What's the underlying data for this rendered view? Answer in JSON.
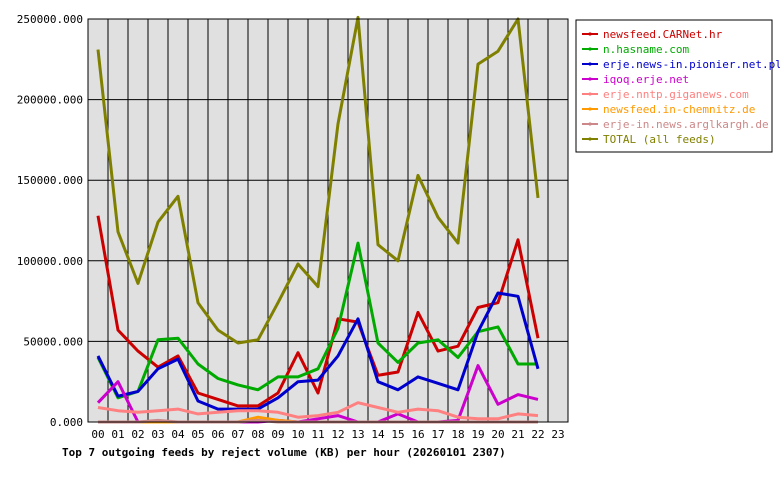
{
  "chart_data": {
    "type": "line",
    "title": "Top 7 outgoing feeds by reject volume (KB) per hour (20260101 2307)",
    "x": [
      "00",
      "01",
      "02",
      "03",
      "04",
      "05",
      "06",
      "07",
      "08",
      "09",
      "10",
      "11",
      "12",
      "13",
      "14",
      "15",
      "16",
      "17",
      "18",
      "19",
      "20",
      "21",
      "22",
      "23"
    ],
    "ylim": [
      0,
      250000
    ],
    "yticks": [
      "0.000",
      "50000.000",
      "100000.000",
      "150000.000",
      "200000.000",
      "250000.000"
    ],
    "yticks_values": [
      0,
      50000,
      100000,
      150000,
      200000,
      250000
    ],
    "grid": true,
    "legend_position": "top-right",
    "series": [
      {
        "name": "newsfeed.CARNet.hr",
        "color": "#cc0000",
        "values": [
          128000,
          57000,
          44000,
          34000,
          41000,
          18000,
          14000,
          10000,
          10000,
          18000,
          43000,
          18000,
          64000,
          62000,
          29000,
          31000,
          68000,
          44000,
          47000,
          71000,
          74000,
          113000,
          52000,
          null
        ]
      },
      {
        "name": "n.hasname.com",
        "color": "#00aa00",
        "values": [
          40000,
          15000,
          19000,
          51000,
          52000,
          36000,
          27000,
          23000,
          20000,
          28000,
          28000,
          33000,
          58000,
          111000,
          49000,
          37000,
          49000,
          51000,
          40000,
          56000,
          59000,
          36000,
          36000,
          null
        ]
      },
      {
        "name": "erje.news-in.pionier.net.pl",
        "color": "#0000cc",
        "values": [
          41000,
          16000,
          19000,
          33000,
          39000,
          13000,
          8000,
          8000,
          8000,
          15000,
          25000,
          26000,
          41000,
          64000,
          25000,
          20000,
          28000,
          24000,
          20000,
          56000,
          80000,
          78000,
          33000,
          null
        ]
      },
      {
        "name": "iqoq.erje.net",
        "color": "#cc00cc",
        "values": [
          12000,
          25000,
          0,
          0,
          0,
          0,
          0,
          0,
          0,
          1000,
          0,
          2000,
          4000,
          0,
          0,
          5000,
          0,
          0,
          1000,
          35000,
          11000,
          17000,
          14000,
          null
        ]
      },
      {
        "name": "erje.nntp.giganews.com",
        "color": "#ff8080",
        "values": [
          9000,
          7000,
          6000,
          7000,
          8000,
          5000,
          6000,
          7000,
          7000,
          6000,
          3000,
          4000,
          6000,
          12000,
          9000,
          6000,
          8000,
          7000,
          3000,
          2000,
          2000,
          5000,
          4000,
          null
        ]
      },
      {
        "name": "newsfeed.in-chemnitz.de",
        "color": "#ff9900",
        "values": [
          0,
          0,
          0,
          0,
          0,
          0,
          0,
          0,
          3000,
          1000,
          0,
          0,
          0,
          0,
          0,
          0,
          0,
          0,
          0,
          0,
          0,
          0,
          0,
          null
        ]
      },
      {
        "name": "erje-in.news.arglkargh.de",
        "color": "#cc8888",
        "values": [
          0,
          0,
          0,
          1000,
          0,
          0,
          0,
          0,
          1000,
          0,
          0,
          0,
          0,
          0,
          0,
          0,
          0,
          0,
          0,
          0,
          0,
          0,
          0,
          null
        ]
      },
      {
        "name": "TOTAL (all feeds)",
        "color": "#808000",
        "values": [
          231000,
          118000,
          86000,
          124000,
          140000,
          74000,
          57000,
          49000,
          51000,
          74000,
          98000,
          84000,
          185000,
          251000,
          110000,
          100000,
          153000,
          127000,
          111000,
          222000,
          230000,
          250000,
          139000,
          null
        ]
      }
    ]
  }
}
